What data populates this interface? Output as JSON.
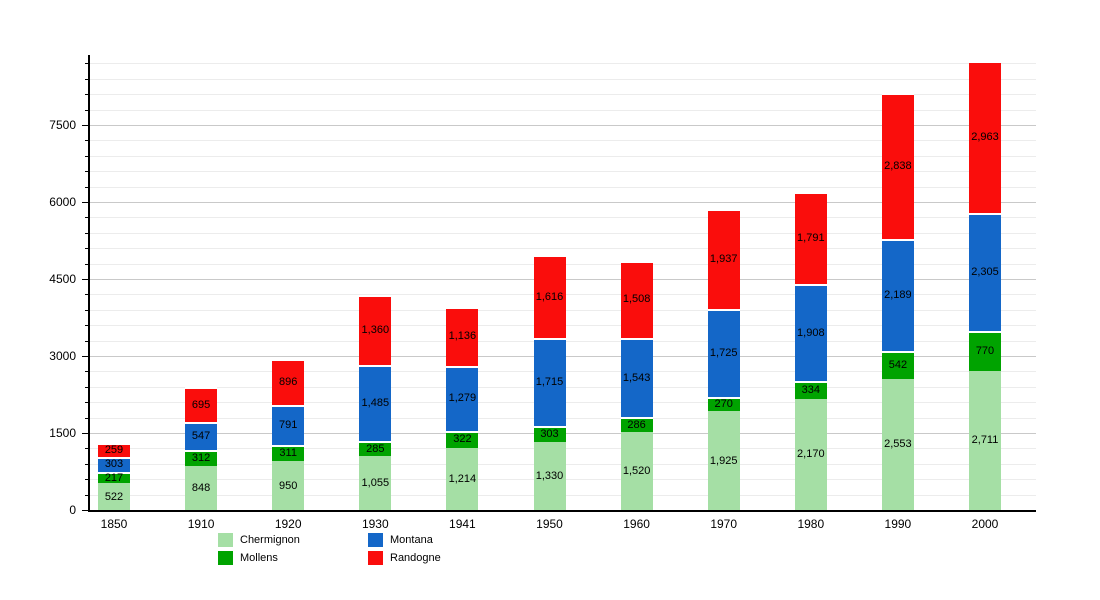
{
  "chart_data": {
    "type": "bar",
    "variant": "stacked",
    "title": "",
    "xlabel": "",
    "ylabel": "",
    "categories": [
      "1850",
      "1910",
      "1920",
      "1930",
      "1941",
      "1950",
      "1960",
      "1970",
      "1980",
      "1990",
      "2000"
    ],
    "series": [
      {
        "name": "Chermignon",
        "color": "#a5dfa5",
        "values": [
          522,
          848,
          950,
          1055,
          1214,
          1330,
          1520,
          1925,
          2170,
          2553,
          2711
        ]
      },
      {
        "name": "Mollens",
        "color": "#00a300",
        "values": [
          217,
          312,
          311,
          285,
          322,
          303,
          286,
          270,
          334,
          542,
          770
        ]
      },
      {
        "name": "Montana",
        "color": "#1467c8",
        "values": [
          303,
          547,
          791,
          1485,
          1279,
          1715,
          1543,
          1725,
          1908,
          2189,
          2305
        ]
      },
      {
        "name": "Randogne",
        "color": "#fa0d0c",
        "values": [
          259,
          695,
          896,
          1360,
          1136,
          1616,
          1508,
          1937,
          1791,
          2838,
          2963
        ]
      }
    ],
    "y_major_ticks": [
      0,
      1500,
      3000,
      4500,
      6000,
      7500
    ],
    "y_minor_step": 300,
    "ylim": [
      0,
      8865
    ],
    "grid": true,
    "legend_position": "bottom",
    "legend_layout": [
      [
        "Chermignon",
        "Mollens"
      ],
      [
        "Montana",
        "Randogne"
      ]
    ],
    "axis_color": "#000000",
    "grid_major_color": "#c9c9c9",
    "grid_minor_color": "#ececec"
  }
}
